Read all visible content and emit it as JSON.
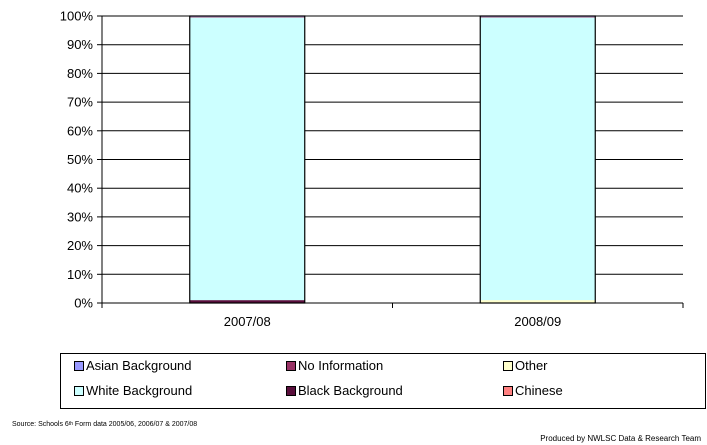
{
  "chart_data": {
    "type": "bar",
    "stacked": true,
    "title": "",
    "xlabel": "",
    "ylabel": "",
    "categories": [
      "2007/08",
      "2008/09"
    ],
    "yticks": [
      "0%",
      "10%",
      "20%",
      "30%",
      "40%",
      "50%",
      "60%",
      "70%",
      "80%",
      "90%",
      "100%"
    ],
    "ylim": [
      0,
      100
    ],
    "grid": true,
    "legend_position": "bottom",
    "series": [
      {
        "name": "Black Background",
        "color": "#5a0f3c",
        "values": [
          1,
          0
        ]
      },
      {
        "name": "Other",
        "color": "#ffffcc",
        "values": [
          0,
          1
        ]
      },
      {
        "name": "White Background",
        "color": "#ccffff",
        "values": [
          98.5,
          98.5
        ]
      },
      {
        "name": "No Information",
        "color": "#993366",
        "values": [
          0.3,
          0.3
        ]
      },
      {
        "name": "Asian Background",
        "color": "#9999ff",
        "values": [
          0.1,
          0.1
        ]
      },
      {
        "name": "Chinese",
        "color": "#ff8080",
        "values": [
          0.1,
          0.1
        ]
      }
    ],
    "legend": [
      {
        "name": "Asian Background",
        "color": "#9999ff"
      },
      {
        "name": "No Information",
        "color": "#993366"
      },
      {
        "name": "Other",
        "color": "#ffffcc"
      },
      {
        "name": "White Background",
        "color": "#ccffff"
      },
      {
        "name": "Black Background",
        "color": "#5a0f3c"
      },
      {
        "name": "Chinese",
        "color": "#ff8080"
      }
    ]
  },
  "footer": {
    "source_prefix": "Source: Schools 6",
    "source_sup": "th",
    "source_suffix": " Form data 2005/06, 2006/07 & 2007/08",
    "credit": "Produced by NWLSC Data & Research Team"
  }
}
